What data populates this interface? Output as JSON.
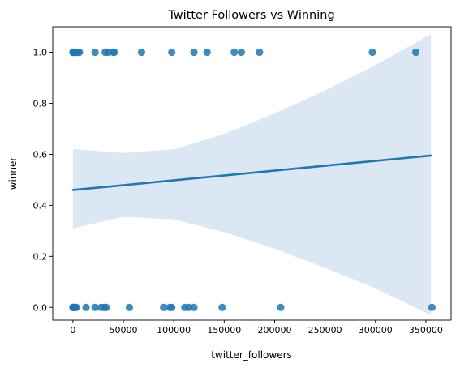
{
  "chart_data": {
    "type": "scatter",
    "title": "Twitter Followers vs Winning",
    "xlabel": "twitter_followers",
    "ylabel": "winner",
    "xlim": [
      -20000,
      375000
    ],
    "ylim": [
      -0.05,
      1.1
    ],
    "xticks": [
      0,
      50000,
      100000,
      150000,
      200000,
      250000,
      300000,
      350000
    ],
    "xtick_labels": [
      "0",
      "50000",
      "100000",
      "150000",
      "200000",
      "250000",
      "300000",
      "350000"
    ],
    "yticks": [
      0.0,
      0.2,
      0.4,
      0.6,
      0.8,
      1.0
    ],
    "ytick_labels": [
      "0.0",
      "0.2",
      "0.4",
      "0.6",
      "0.8",
      "1.0"
    ],
    "grid": false,
    "colors": {
      "points": "#1f77b4",
      "line": "#1f77b4",
      "band": "#dbe7f3"
    },
    "points": [
      {
        "x": 0,
        "y": 1
      },
      {
        "x": 400,
        "y": 1
      },
      {
        "x": 900,
        "y": 1
      },
      {
        "x": 1500,
        "y": 1
      },
      {
        "x": 2300,
        "y": 1
      },
      {
        "x": 3200,
        "y": 1
      },
      {
        "x": 5000,
        "y": 1
      },
      {
        "x": 6500,
        "y": 1
      },
      {
        "x": 22000,
        "y": 1
      },
      {
        "x": 32000,
        "y": 1
      },
      {
        "x": 35000,
        "y": 1
      },
      {
        "x": 40000,
        "y": 1
      },
      {
        "x": 41000,
        "y": 1
      },
      {
        "x": 68000,
        "y": 1
      },
      {
        "x": 98000,
        "y": 1
      },
      {
        "x": 120000,
        "y": 1
      },
      {
        "x": 133000,
        "y": 1
      },
      {
        "x": 160000,
        "y": 1
      },
      {
        "x": 167000,
        "y": 1
      },
      {
        "x": 185000,
        "y": 1
      },
      {
        "x": 297000,
        "y": 1
      },
      {
        "x": 340000,
        "y": 1
      },
      {
        "x": 0,
        "y": 0
      },
      {
        "x": 400,
        "y": 0
      },
      {
        "x": 900,
        "y": 0
      },
      {
        "x": 1500,
        "y": 0
      },
      {
        "x": 2300,
        "y": 0
      },
      {
        "x": 3500,
        "y": 0
      },
      {
        "x": 13000,
        "y": 0
      },
      {
        "x": 22000,
        "y": 0
      },
      {
        "x": 28000,
        "y": 0
      },
      {
        "x": 31000,
        "y": 0
      },
      {
        "x": 33000,
        "y": 0
      },
      {
        "x": 56000,
        "y": 0
      },
      {
        "x": 90000,
        "y": 0
      },
      {
        "x": 96000,
        "y": 0
      },
      {
        "x": 98000,
        "y": 0
      },
      {
        "x": 111000,
        "y": 0
      },
      {
        "x": 115000,
        "y": 0
      },
      {
        "x": 120000,
        "y": 0
      },
      {
        "x": 148000,
        "y": 0
      },
      {
        "x": 206000,
        "y": 0
      },
      {
        "x": 356000,
        "y": 0
      }
    ],
    "regression": {
      "x": [
        0,
        355000
      ],
      "y": [
        0.46,
        0.595
      ]
    },
    "confidence_band": {
      "x": [
        0,
        50000,
        100000,
        150000,
        200000,
        250000,
        300000,
        355000
      ],
      "upper": [
        0.62,
        0.605,
        0.62,
        0.68,
        0.76,
        0.85,
        0.95,
        1.07
      ],
      "lower": [
        0.31,
        0.355,
        0.345,
        0.295,
        0.23,
        0.155,
        0.075,
        -0.03
      ]
    }
  }
}
